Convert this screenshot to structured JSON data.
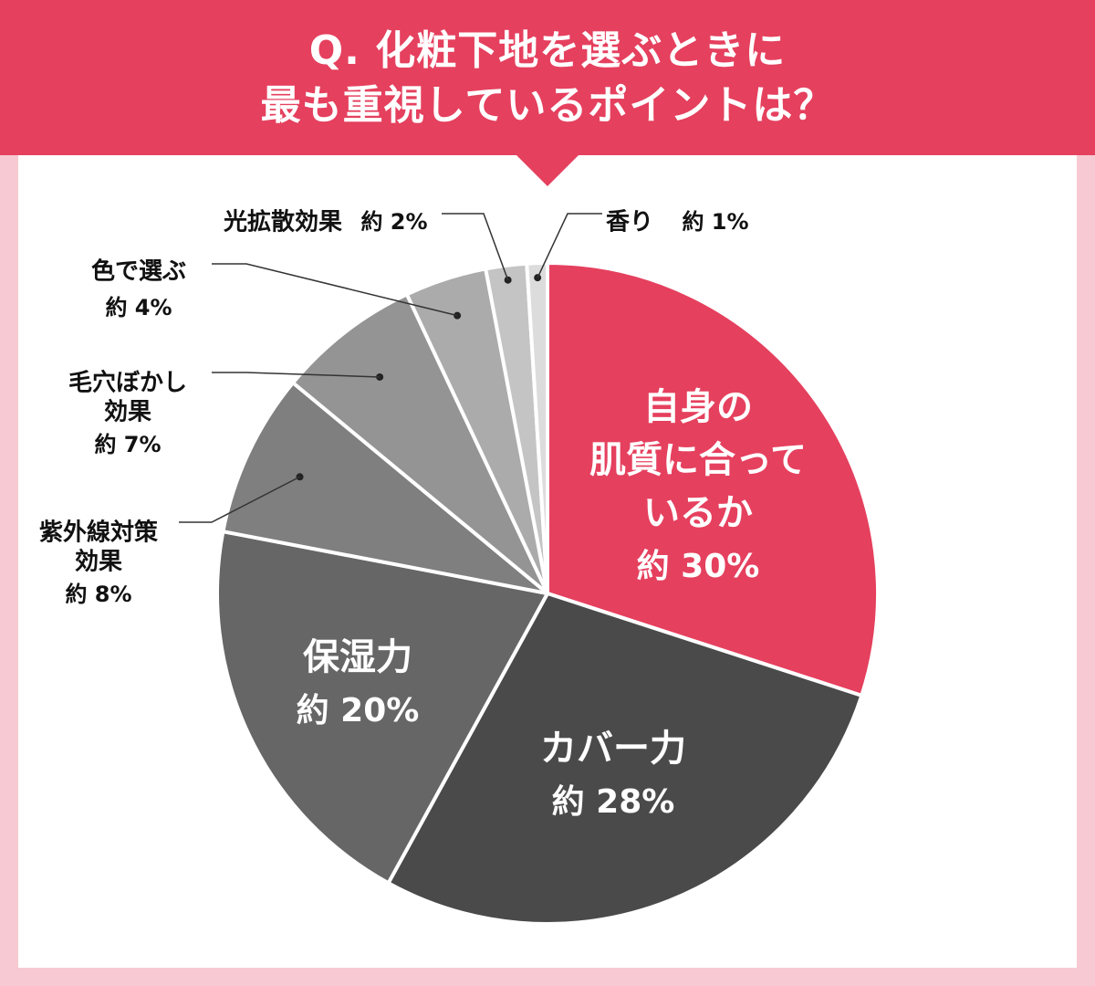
{
  "title": {
    "line1": "Q. 化粧下地を選ぶときに",
    "line2": "最も重視しているポイントは？"
  },
  "colors": {
    "accent": "#e5405e",
    "background": "#f7c9d2",
    "panel": "#ffffff"
  },
  "chart_data": {
    "type": "pie",
    "title": "Q. 化粧下地を選ぶときに最も重視しているポイントは？",
    "start_angle": "12 o'clock",
    "direction": "clockwise",
    "slices": [
      {
        "name": "自身の肌質に合っているか",
        "label_lines": [
          "自身の",
          "肌質に合って",
          "いるか"
        ],
        "pct_label": "約 30%",
        "value": 30,
        "color": "#e5405e",
        "label_position": "inside"
      },
      {
        "name": "カバー力",
        "label_lines": [
          "カバー力"
        ],
        "pct_label": "約 28%",
        "value": 28,
        "color": "#4a4a4a",
        "label_position": "inside"
      },
      {
        "name": "保湿力",
        "label_lines": [
          "保湿力"
        ],
        "pct_label": "約 20%",
        "value": 20,
        "color": "#666666",
        "label_position": "inside"
      },
      {
        "name": "紫外線対策効果",
        "label_lines": [
          "紫外線対策",
          "効果"
        ],
        "pct_label": "約 8%",
        "value": 8,
        "color": "#7f7f7f",
        "label_position": "outside"
      },
      {
        "name": "毛穴ぼかし効果",
        "label_lines": [
          "毛穴ぼかし",
          "効果"
        ],
        "pct_label": "約 7%",
        "value": 7,
        "color": "#949494",
        "label_position": "outside"
      },
      {
        "name": "色で選ぶ",
        "label_lines": [
          "色で選ぶ"
        ],
        "pct_label": "約 4%",
        "value": 4,
        "color": "#ababab",
        "label_position": "outside"
      },
      {
        "name": "光拡散効果",
        "label_lines": [
          "光拡散効果"
        ],
        "pct_label": "約 2%",
        "value": 2,
        "color": "#c4c4c4",
        "label_position": "outside"
      },
      {
        "name": "香り",
        "label_lines": [
          "香り"
        ],
        "pct_label": "約 1%",
        "value": 1,
        "color": "#dcdcdc",
        "label_position": "outside"
      }
    ]
  }
}
